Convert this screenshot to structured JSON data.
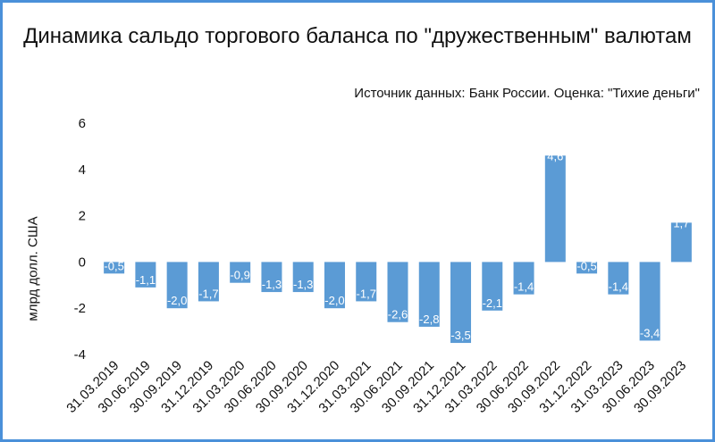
{
  "chart_data": {
    "type": "bar",
    "title": "Динамика сальдо торгового баланса по \"дружественным\" валютам",
    "subtitle": "Источник данных: Банк России. Оценка: \"Тихие деньги\"",
    "ylabel": "млрд долл. США",
    "xlabel": "",
    "ylim": [
      -4,
      6
    ],
    "yticks": [
      -4,
      -2,
      0,
      2,
      4,
      6
    ],
    "ytick_labels": [
      "-4",
      "-2",
      "0",
      "2",
      "4",
      "6"
    ],
    "grid": false,
    "bar_color": "#5b9bd5",
    "categories": [
      "31.03.2019",
      "30.06.2019",
      "30.09.2019",
      "31.12.2019",
      "31.03.2020",
      "30.06.2020",
      "30.09.2020",
      "31.12.2020",
      "31.03.2021",
      "30.06.2021",
      "30.09.2021",
      "31.12.2021",
      "31.03.2022",
      "30.06.2022",
      "30.09.2022",
      "31.12.2022",
      "31.03.2023",
      "30.06.2023",
      "30.09.2023"
    ],
    "values": [
      -0.5,
      -1.1,
      -2.0,
      -1.7,
      -0.9,
      -1.3,
      -1.3,
      -2.0,
      -1.7,
      -2.6,
      -2.8,
      -3.5,
      -2.1,
      -1.4,
      4.6,
      -0.5,
      -1.4,
      -3.4,
      1.7
    ],
    "data_labels": [
      "-0,5",
      "-1,1",
      "-2,0",
      "-1,7",
      "-0,9",
      "-1,3",
      "-1,3",
      "-2,0",
      "-1,7",
      "-2,6",
      "-2,8",
      "-3,5",
      "-2,1",
      "-1,4",
      "4,6",
      "-0,5",
      "-1,4",
      "-3,4",
      "1,7"
    ]
  }
}
